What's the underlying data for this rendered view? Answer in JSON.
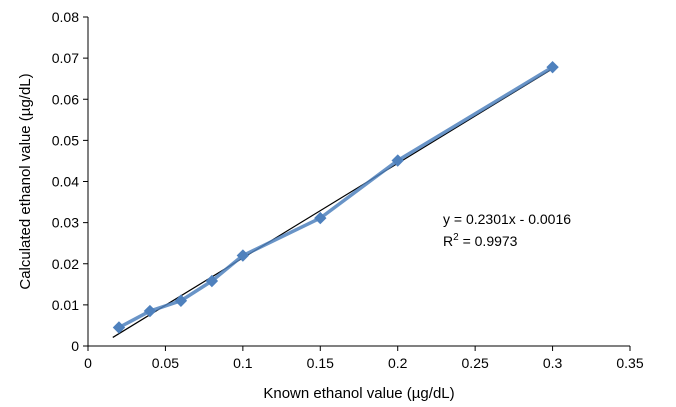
{
  "chart_data": {
    "type": "scatter",
    "xlabel": "Known ethanol value (µg/dL)",
    "ylabel": "Calculated ethanol value (µg/dL)",
    "xlim": [
      0,
      0.35
    ],
    "ylim": [
      0,
      0.08
    ],
    "x_ticks": [
      "0",
      "0.05",
      "0.1",
      "0.15",
      "0.2",
      "0.25",
      "0.3",
      "0.35"
    ],
    "y_ticks": [
      "0",
      "0.01",
      "0.02",
      "0.03",
      "0.04",
      "0.05",
      "0.06",
      "0.07",
      "0.08"
    ],
    "grid": false,
    "series": [
      {
        "marker": "diamond",
        "color": "#4f81bd",
        "x": [
          0.02,
          0.04,
          0.06,
          0.08,
          0.1,
          0.15,
          0.2,
          0.3
        ],
        "y": [
          0.0045,
          0.0085,
          0.011,
          0.0158,
          0.022,
          0.0311,
          0.0451,
          0.0678
        ]
      }
    ],
    "trendline": {
      "color": "#000000",
      "slope": 0.2301,
      "intercept": -0.0016,
      "x_range": [
        0.02,
        0.3
      ]
    },
    "annotation": {
      "equation": "y = 0.2301x - 0.0016",
      "r2_prefix": "R",
      "r2_sup": "2",
      "r2_value": " = 0.9973"
    }
  }
}
